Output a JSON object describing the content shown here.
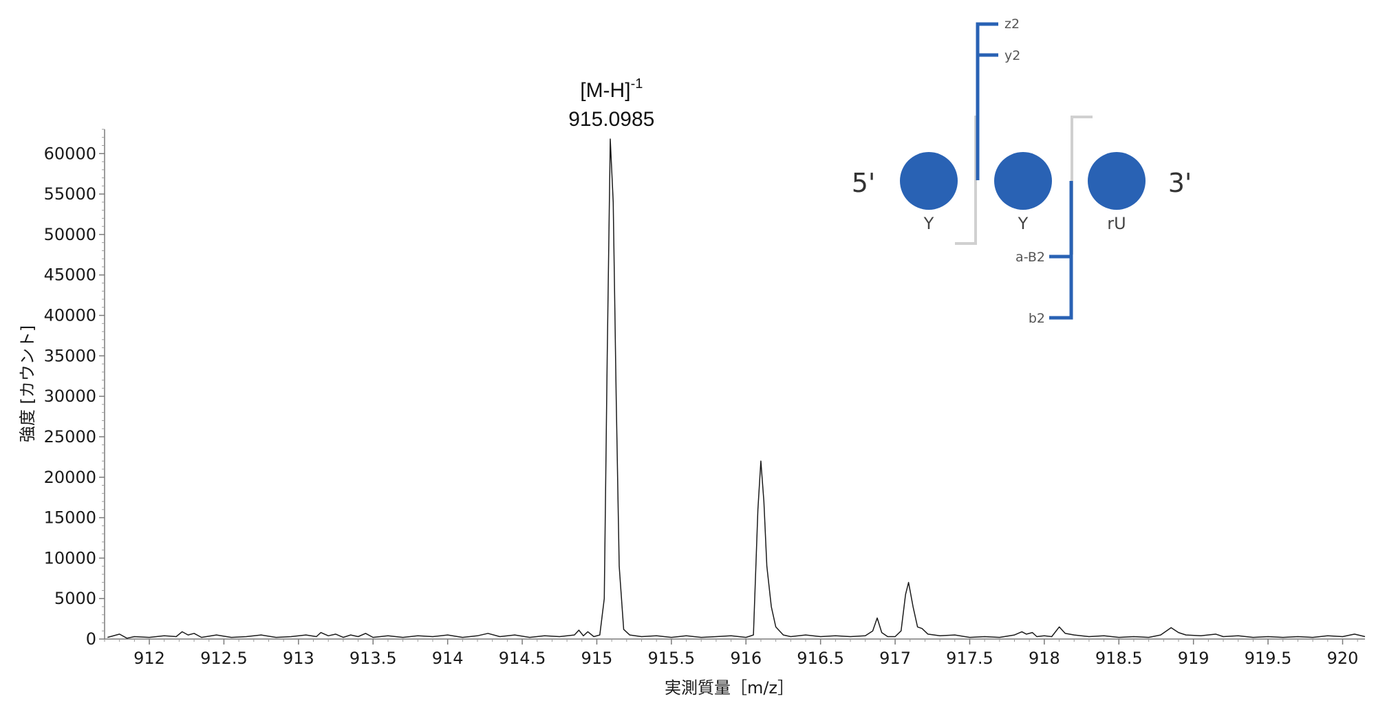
{
  "chart_data": {
    "type": "line",
    "xlabel": "実測質量［m/z］",
    "ylabel": "強度 [カウント]",
    "xlim": [
      911.7,
      920.15
    ],
    "ylim": [
      0,
      63000
    ],
    "x_ticks": [
      912,
      912.5,
      913,
      913.5,
      914,
      914.5,
      915,
      915.5,
      916,
      916.5,
      917,
      917.5,
      918,
      918.5,
      919,
      919.5,
      920
    ],
    "x_tick_labels": [
      "912",
      "912.5",
      "913",
      "913.5",
      "914",
      "914.5",
      "915",
      "915.5",
      "916",
      "916.5",
      "917",
      "917.5",
      "918",
      "918.5",
      "919",
      "919.5",
      "920"
    ],
    "y_ticks": [
      0,
      5000,
      10000,
      15000,
      20000,
      25000,
      30000,
      35000,
      40000,
      45000,
      50000,
      55000,
      60000
    ],
    "y_tick_labels": [
      "0",
      "5000",
      "10000",
      "15000",
      "20000",
      "25000",
      "30000",
      "35000",
      "40000",
      "45000",
      "50000",
      "55000",
      "60000"
    ],
    "grid": false,
    "series": [
      {
        "color": "#1a1a1a",
        "points": [
          [
            911.72,
            200
          ],
          [
            911.8,
            600
          ],
          [
            911.85,
            100
          ],
          [
            911.9,
            300
          ],
          [
            912.0,
            200
          ],
          [
            912.1,
            400
          ],
          [
            912.18,
            300
          ],
          [
            912.22,
            900
          ],
          [
            912.26,
            500
          ],
          [
            912.3,
            700
          ],
          [
            912.35,
            200
          ],
          [
            912.45,
            500
          ],
          [
            912.55,
            200
          ],
          [
            912.65,
            300
          ],
          [
            912.75,
            500
          ],
          [
            912.85,
            200
          ],
          [
            912.95,
            300
          ],
          [
            913.05,
            500
          ],
          [
            913.12,
            300
          ],
          [
            913.15,
            800
          ],
          [
            913.2,
            400
          ],
          [
            913.25,
            600
          ],
          [
            913.3,
            200
          ],
          [
            913.35,
            500
          ],
          [
            913.4,
            300
          ],
          [
            913.45,
            700
          ],
          [
            913.5,
            200
          ],
          [
            913.6,
            400
          ],
          [
            913.7,
            200
          ],
          [
            913.8,
            400
          ],
          [
            913.9,
            300
          ],
          [
            914.0,
            500
          ],
          [
            914.1,
            200
          ],
          [
            914.2,
            400
          ],
          [
            914.27,
            700
          ],
          [
            914.35,
            300
          ],
          [
            914.45,
            500
          ],
          [
            914.55,
            200
          ],
          [
            914.65,
            400
          ],
          [
            914.75,
            300
          ],
          [
            914.85,
            500
          ],
          [
            914.88,
            1100
          ],
          [
            914.91,
            400
          ],
          [
            914.94,
            900
          ],
          [
            914.98,
            300
          ],
          [
            915.02,
            500
          ],
          [
            915.05,
            5000
          ],
          [
            915.07,
            35000
          ],
          [
            915.09,
            61800
          ],
          [
            915.11,
            54000
          ],
          [
            915.13,
            30000
          ],
          [
            915.15,
            9000
          ],
          [
            915.18,
            1200
          ],
          [
            915.22,
            500
          ],
          [
            915.3,
            300
          ],
          [
            915.4,
            400
          ],
          [
            915.5,
            200
          ],
          [
            915.6,
            400
          ],
          [
            915.7,
            200
          ],
          [
            915.8,
            300
          ],
          [
            915.9,
            400
          ],
          [
            916.0,
            200
          ],
          [
            916.05,
            500
          ],
          [
            916.08,
            16000
          ],
          [
            916.1,
            22000
          ],
          [
            916.12,
            17000
          ],
          [
            916.14,
            9000
          ],
          [
            916.17,
            4000
          ],
          [
            916.2,
            1500
          ],
          [
            916.25,
            500
          ],
          [
            916.3,
            300
          ],
          [
            916.4,
            500
          ],
          [
            916.5,
            300
          ],
          [
            916.6,
            400
          ],
          [
            916.7,
            300
          ],
          [
            916.8,
            400
          ],
          [
            916.85,
            1000
          ],
          [
            916.88,
            2600
          ],
          [
            916.91,
            800
          ],
          [
            916.95,
            300
          ],
          [
            917.0,
            300
          ],
          [
            917.04,
            1000
          ],
          [
            917.07,
            5500
          ],
          [
            917.09,
            7000
          ],
          [
            917.12,
            4000
          ],
          [
            917.15,
            1500
          ],
          [
            917.18,
            1300
          ],
          [
            917.22,
            600
          ],
          [
            917.3,
            400
          ],
          [
            917.4,
            500
          ],
          [
            917.5,
            200
          ],
          [
            917.6,
            300
          ],
          [
            917.7,
            200
          ],
          [
            917.8,
            500
          ],
          [
            917.85,
            900
          ],
          [
            917.88,
            600
          ],
          [
            917.92,
            800
          ],
          [
            917.95,
            300
          ],
          [
            918.0,
            400
          ],
          [
            918.05,
            300
          ],
          [
            918.1,
            1500
          ],
          [
            918.14,
            700
          ],
          [
            918.2,
            500
          ],
          [
            918.3,
            300
          ],
          [
            918.4,
            400
          ],
          [
            918.5,
            200
          ],
          [
            918.6,
            300
          ],
          [
            918.7,
            200
          ],
          [
            918.78,
            500
          ],
          [
            918.85,
            1400
          ],
          [
            918.9,
            800
          ],
          [
            918.95,
            500
          ],
          [
            919.05,
            400
          ],
          [
            919.15,
            600
          ],
          [
            919.2,
            300
          ],
          [
            919.3,
            400
          ],
          [
            919.4,
            200
          ],
          [
            919.5,
            300
          ],
          [
            919.6,
            200
          ],
          [
            919.7,
            300
          ],
          [
            919.8,
            200
          ],
          [
            919.9,
            400
          ],
          [
            920.0,
            300
          ],
          [
            920.08,
            600
          ],
          [
            920.15,
            300
          ]
        ]
      }
    ],
    "annotations": [
      {
        "text_main": "[M-H]",
        "text_sup": "-1",
        "text_value": "915.0985",
        "x": 915.0985
      }
    ]
  },
  "sequence_diagram": {
    "five_prime": "5'",
    "three_prime": "3'",
    "nucleotide_color": "#2962b4",
    "bracket_color": "#d0d0d0",
    "nucleotides": [
      "Y",
      "Y",
      "rU"
    ],
    "fragments_top": [
      "z2",
      "y2"
    ],
    "fragments_bottom": [
      "a-B2",
      "b2"
    ]
  }
}
